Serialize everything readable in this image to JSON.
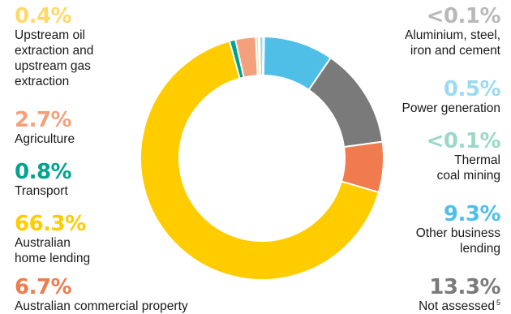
{
  "chart_data": {
    "type": "pie",
    "style": "donut",
    "slices": [
      {
        "label": "Not assessed",
        "footnote": "5",
        "value": 13.3,
        "display": "13.3%",
        "color": "#7a7a7a"
      },
      {
        "label": "Australian commercial property",
        "value": 6.7,
        "display": "6.7%",
        "color": "#ef7b4e"
      },
      {
        "label": "Australian\nhome lending",
        "value": 66.3,
        "display": "66.3%",
        "color": "#ffcc00"
      },
      {
        "label": "Transport",
        "value": 0.8,
        "display": "0.8%",
        "color": "#00a38c"
      },
      {
        "label": "Agriculture",
        "value": 2.7,
        "display": "2.7%",
        "color": "#f4a07c"
      },
      {
        "label": "Upstream oil\nextraction and\nupstream gas\nextraction",
        "value": 0.4,
        "display": "0.4%",
        "color": "#ffe08a"
      },
      {
        "label": "Aluminium, steel,\niron and cement",
        "value": 0.1,
        "display": "<0.1%",
        "color": "#b8b8b8"
      },
      {
        "label": "Power generation",
        "value": 0.5,
        "display": "0.5%",
        "color": "#9cd9f2"
      },
      {
        "label": "Thermal\ncoal mining",
        "value": 0.1,
        "display": "<0.1%",
        "color": "#9ad8c9"
      },
      {
        "label": "Other business\nlending",
        "value": 9.3,
        "display": "9.3%",
        "color": "#4fbfe8"
      }
    ]
  }
}
